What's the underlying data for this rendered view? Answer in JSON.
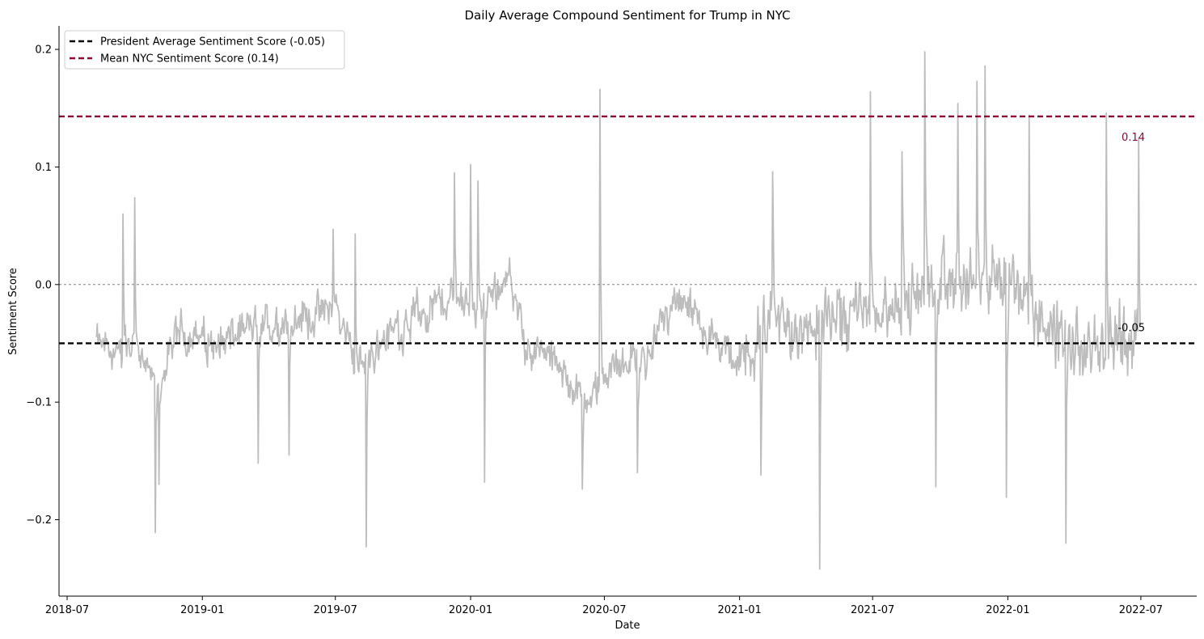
{
  "chart_data": {
    "type": "line",
    "title": "Daily Average Compound Sentiment for Trump in NYC",
    "xlabel": "Date",
    "ylabel": "Sentiment Score",
    "x_ticks": [
      "2018-07",
      "2019-01",
      "2019-07",
      "2020-01",
      "2020-07",
      "2021-01",
      "2021-07",
      "2022-01",
      "2022-07"
    ],
    "y_ticks": [
      -0.2,
      -0.1,
      0.0,
      0.1,
      0.2
    ],
    "y_tick_labels": [
      "−0.2",
      "−0.1",
      "0.0",
      "0.1",
      "0.2"
    ],
    "xlim": [
      "2018-06-20",
      "2022-09-15"
    ],
    "ylim": [
      -0.265,
      0.22
    ],
    "grid": false,
    "legend_position": "top-left",
    "series": [
      {
        "type": "line",
        "color": "#bdbdbd",
        "start_date": "2018-08-10",
        "end_date": "2022-06-30",
        "anchors": [
          [
            "2018-08-10",
            -0.05
          ],
          [
            "2018-09-05",
            -0.06
          ],
          [
            "2018-10-01",
            -0.05
          ],
          [
            "2018-10-28",
            -0.09
          ],
          [
            "2018-12-01",
            -0.04
          ],
          [
            "2019-01-15",
            -0.05
          ],
          [
            "2019-03-01",
            -0.04
          ],
          [
            "2019-05-01",
            -0.03
          ],
          [
            "2019-07-01",
            -0.02
          ],
          [
            "2019-08-01",
            -0.07
          ],
          [
            "2019-09-15",
            -0.04
          ],
          [
            "2019-11-01",
            -0.02
          ],
          [
            "2019-12-15",
            -0.01
          ],
          [
            "2020-01-15",
            -0.02
          ],
          [
            "2020-02-20",
            0.01
          ],
          [
            "2020-03-15",
            -0.05
          ],
          [
            "2020-05-01",
            -0.07
          ],
          [
            "2020-06-01",
            -0.1
          ],
          [
            "2020-07-15",
            -0.07
          ],
          [
            "2020-09-01",
            -0.06
          ],
          [
            "2020-10-01",
            -0.01
          ],
          [
            "2020-11-15",
            -0.04
          ],
          [
            "2021-01-01",
            -0.07
          ],
          [
            "2021-02-15",
            -0.03
          ],
          [
            "2021-04-01",
            -0.04
          ],
          [
            "2021-06-01",
            -0.02
          ],
          [
            "2021-08-01",
            -0.02
          ],
          [
            "2021-10-01",
            0.0
          ],
          [
            "2021-12-01",
            0.0
          ],
          [
            "2022-01-15",
            0.0
          ],
          [
            "2022-03-01",
            -0.04
          ],
          [
            "2022-04-15",
            -0.06
          ],
          [
            "2022-06-30",
            -0.04
          ]
        ],
        "spikes": [
          [
            "2018-10-29",
            -0.211
          ],
          [
            "2018-11-03",
            -0.17
          ],
          [
            "2018-09-15",
            0.06
          ],
          [
            "2018-10-01",
            0.074
          ],
          [
            "2019-03-18",
            -0.152
          ],
          [
            "2019-04-29",
            -0.145
          ],
          [
            "2019-06-28",
            0.047
          ],
          [
            "2019-07-28",
            0.043
          ],
          [
            "2019-08-12",
            -0.223
          ],
          [
            "2019-12-10",
            0.095
          ],
          [
            "2020-01-01",
            0.102
          ],
          [
            "2020-01-11",
            0.088
          ],
          [
            "2020-01-20",
            -0.168
          ],
          [
            "2020-06-01",
            -0.174
          ],
          [
            "2020-06-25",
            0.166
          ],
          [
            "2020-08-15",
            -0.16
          ],
          [
            "2021-01-30",
            -0.162
          ],
          [
            "2021-02-15",
            0.096
          ],
          [
            "2021-04-20",
            -0.242
          ],
          [
            "2021-06-28",
            0.164
          ],
          [
            "2021-08-10",
            0.113
          ],
          [
            "2021-09-10",
            0.198
          ],
          [
            "2021-09-25",
            -0.172
          ],
          [
            "2021-10-25",
            0.154
          ],
          [
            "2021-11-20",
            0.173
          ],
          [
            "2021-12-01",
            0.186
          ],
          [
            "2021-12-30",
            -0.181
          ],
          [
            "2022-01-30",
            0.144
          ],
          [
            "2022-03-21",
            -0.22
          ],
          [
            "2022-05-15",
            0.146
          ],
          [
            "2022-06-28",
            0.125
          ]
        ]
      }
    ],
    "reference_lines": [
      {
        "y": -0.05,
        "label": "President Average Sentiment Score (-0.05)",
        "annotation": "-0.05",
        "color": "#000000",
        "dash": "dashed"
      },
      {
        "y": 0.143,
        "label": "Mean NYC Sentiment Score (0.14)",
        "annotation": "0.14",
        "color": "#8b0a34",
        "dash": "dashed"
      },
      {
        "y": 0.0,
        "label": "",
        "annotation": "",
        "color": "#808080",
        "dash": "dotted"
      }
    ]
  }
}
